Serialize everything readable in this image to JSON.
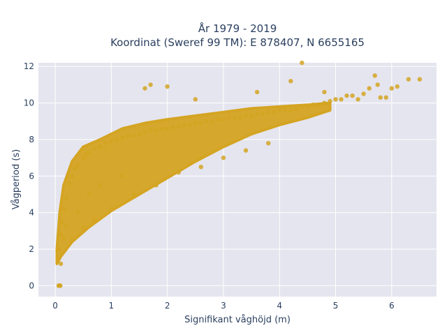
{
  "chart_data": {
    "type": "scatter",
    "title_lines": [
      "År 1979 - 2019",
      "Koordinat (Sweref 99 TM): E 878407, N 6655165"
    ],
    "xlabel": "Signifikant våghöjd (m)",
    "ylabel": "Vågperiod (s)",
    "xlim": [
      -0.3,
      6.8
    ],
    "ylim": [
      -0.6,
      12.2
    ],
    "x_ticks": [
      0,
      1,
      2,
      3,
      4,
      5,
      6
    ],
    "y_ticks": [
      0,
      2,
      4,
      6,
      8,
      10,
      12
    ],
    "grid": true,
    "legend": "none",
    "marker_color": "#d4a422",
    "plot_background": "#e5e5ef",
    "grid_color": "#ffffff",
    "points": {
      "x": [
        0.05,
        0.07,
        0.1,
        0.12,
        0.15,
        0.2,
        0.25,
        0.3,
        0.35,
        0.4,
        0.5,
        0.55,
        0.6,
        0.7,
        0.8,
        0.9,
        1.0,
        1.1,
        1.2,
        1.3,
        1.4,
        1.5,
        1.6,
        1.7,
        1.8,
        1.9,
        2.0,
        2.1,
        2.2,
        2.3,
        2.4,
        2.5,
        2.6,
        2.7,
        2.8,
        2.9,
        3.0,
        3.1,
        3.2,
        3.3,
        3.4,
        3.5,
        3.6,
        3.7,
        3.8,
        3.9,
        4.0,
        4.1,
        4.2,
        4.3,
        4.4,
        4.5,
        4.6,
        4.7,
        4.8,
        4.9,
        5.0,
        5.1,
        5.2,
        5.3,
        5.5,
        5.6,
        5.7,
        5.75,
        5.8,
        5.9,
        6.0,
        6.1,
        6.3,
        6.5,
        0.06,
        0.08,
        0.09,
        0.3,
        0.5,
        0.7,
        1.0,
        1.4,
        1.8,
        2.2,
        2.6,
        3.0,
        3.4,
        3.8,
        1.7,
        2.0,
        4.4,
        0.6,
        0.8,
        1.2,
        0.2,
        0.4,
        0.15,
        0.1,
        2.5,
        3.6,
        4.2,
        4.8,
        5.4,
        1.6
      ],
      "y": [
        1.5,
        2.0,
        2.8,
        3.5,
        4.2,
        4.8,
        5.6,
        6.0,
        6.4,
        6.6,
        7.0,
        7.2,
        7.3,
        7.5,
        7.6,
        7.8,
        7.9,
        8.0,
        8.1,
        8.2,
        8.2,
        8.3,
        8.4,
        8.5,
        8.5,
        8.6,
        8.6,
        8.7,
        8.7,
        8.8,
        8.8,
        8.9,
        8.9,
        9.0,
        9.0,
        9.1,
        9.1,
        9.2,
        9.2,
        9.2,
        9.3,
        9.3,
        9.4,
        9.4,
        9.5,
        9.5,
        9.6,
        9.6,
        9.6,
        9.7,
        9.8,
        9.8,
        9.9,
        9.9,
        10.0,
        10.1,
        10.2,
        10.2,
        10.4,
        10.4,
        10.5,
        10.8,
        11.5,
        11.0,
        10.3,
        10.3,
        10.8,
        10.9,
        11.3,
        11.3,
        0.0,
        0.0,
        0.0,
        2.5,
        3.2,
        3.6,
        4.2,
        5.0,
        5.5,
        6.2,
        6.5,
        7.0,
        7.4,
        7.8,
        11.0,
        10.9,
        12.2,
        5.0,
        5.5,
        6.0,
        3.3,
        4.0,
        2.6,
        1.2,
        10.2,
        10.6,
        11.2,
        10.6,
        10.2,
        10.8
      ]
    }
  }
}
